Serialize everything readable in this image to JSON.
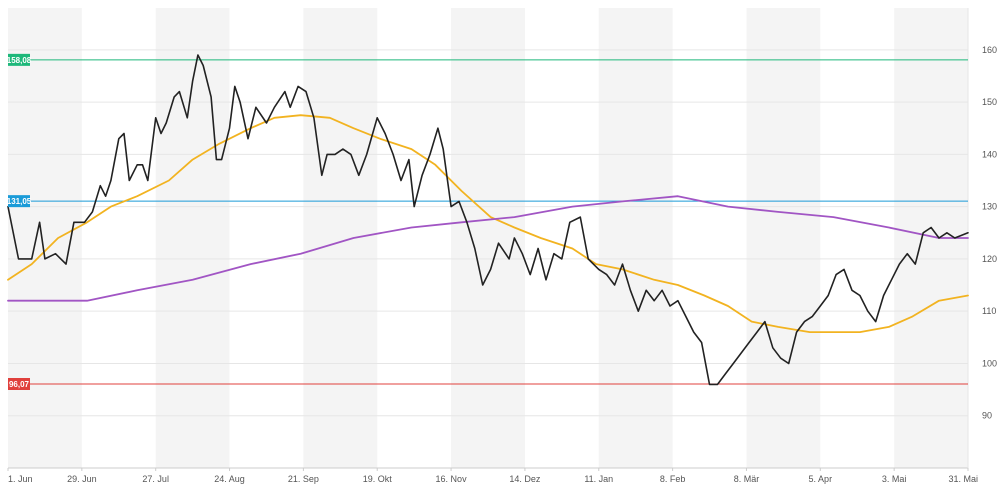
{
  "chart_data": {
    "type": "line",
    "title": "",
    "xlabel": "",
    "ylabel": "",
    "ylim": [
      80,
      168
    ],
    "x_range": [
      "2020-06-01",
      "2021-05-31"
    ],
    "grid": true,
    "x_ticks": [
      {
        "date": "2020-06-01",
        "label": "1. Jun"
      },
      {
        "date": "2020-06-29",
        "label": "29. Jun"
      },
      {
        "date": "2020-07-27",
        "label": "27. Jul"
      },
      {
        "date": "2020-08-24",
        "label": "24. Aug"
      },
      {
        "date": "2020-09-21",
        "label": "21. Sep"
      },
      {
        "date": "2020-10-19",
        "label": "19. Okt"
      },
      {
        "date": "2020-11-16",
        "label": "16. Nov"
      },
      {
        "date": "2020-12-14",
        "label": "14. Dez"
      },
      {
        "date": "2021-01-11",
        "label": "11. Jan"
      },
      {
        "date": "2021-02-08",
        "label": "8. Feb"
      },
      {
        "date": "2021-03-08",
        "label": "8. Mär"
      },
      {
        "date": "2021-04-05",
        "label": "5. Apr"
      },
      {
        "date": "2021-05-03",
        "label": "3. Mai"
      },
      {
        "date": "2021-05-31",
        "label": "31. Mai"
      }
    ],
    "y_ticks": [
      90,
      100,
      110,
      120,
      130,
      140,
      150,
      160
    ],
    "reference_lines": [
      {
        "value": 158.08,
        "label": "158,08",
        "color": "#1db87a"
      },
      {
        "value": 131.05,
        "label": "131,05",
        "color": "#1a9bd8"
      },
      {
        "value": 96.07,
        "label": "96,07",
        "color": "#e0403c"
      }
    ],
    "series": [
      {
        "name": "",
        "color": "#222222",
        "points": [
          [
            "2020-06-01",
            130
          ],
          [
            "2020-06-05",
            120
          ],
          [
            "2020-06-10",
            120
          ],
          [
            "2020-06-13",
            127
          ],
          [
            "2020-06-15",
            120
          ],
          [
            "2020-06-19",
            121
          ],
          [
            "2020-06-23",
            119
          ],
          [
            "2020-06-26",
            127
          ],
          [
            "2020-06-30",
            127
          ],
          [
            "2020-07-03",
            129
          ],
          [
            "2020-07-06",
            134
          ],
          [
            "2020-07-08",
            132
          ],
          [
            "2020-07-10",
            135
          ],
          [
            "2020-07-13",
            143
          ],
          [
            "2020-07-15",
            144
          ],
          [
            "2020-07-17",
            135
          ],
          [
            "2020-07-20",
            138
          ],
          [
            "2020-07-22",
            138
          ],
          [
            "2020-07-24",
            135
          ],
          [
            "2020-07-27",
            147
          ],
          [
            "2020-07-29",
            144
          ],
          [
            "2020-07-31",
            146
          ],
          [
            "2020-08-03",
            151
          ],
          [
            "2020-08-05",
            152
          ],
          [
            "2020-08-08",
            147
          ],
          [
            "2020-08-10",
            154
          ],
          [
            "2020-08-12",
            159
          ],
          [
            "2020-08-14",
            157
          ],
          [
            "2020-08-17",
            151
          ],
          [
            "2020-08-19",
            139
          ],
          [
            "2020-08-21",
            139
          ],
          [
            "2020-08-24",
            145
          ],
          [
            "2020-08-26",
            153
          ],
          [
            "2020-08-28",
            150
          ],
          [
            "2020-08-31",
            143
          ],
          [
            "2020-09-03",
            149
          ],
          [
            "2020-09-07",
            146
          ],
          [
            "2020-09-10",
            149
          ],
          [
            "2020-09-14",
            152
          ],
          [
            "2020-09-16",
            149
          ],
          [
            "2020-09-19",
            153
          ],
          [
            "2020-09-22",
            152
          ],
          [
            "2020-09-25",
            147
          ],
          [
            "2020-09-28",
            136
          ],
          [
            "2020-09-30",
            140
          ],
          [
            "2020-10-03",
            140
          ],
          [
            "2020-10-06",
            141
          ],
          [
            "2020-10-09",
            140
          ],
          [
            "2020-10-12",
            136
          ],
          [
            "2020-10-15",
            140
          ],
          [
            "2020-10-19",
            147
          ],
          [
            "2020-10-22",
            144
          ],
          [
            "2020-10-25",
            140
          ],
          [
            "2020-10-28",
            135
          ],
          [
            "2020-10-31",
            139
          ],
          [
            "2020-11-02",
            130
          ],
          [
            "2020-11-05",
            136
          ],
          [
            "2020-11-08",
            140
          ],
          [
            "2020-11-11",
            145
          ],
          [
            "2020-11-13",
            141
          ],
          [
            "2020-11-16",
            130
          ],
          [
            "2020-11-19",
            131
          ],
          [
            "2020-11-22",
            127
          ],
          [
            "2020-11-25",
            122
          ],
          [
            "2020-11-28",
            115
          ],
          [
            "2020-12-01",
            118
          ],
          [
            "2020-12-04",
            123
          ],
          [
            "2020-12-08",
            120
          ],
          [
            "2020-12-10",
            124
          ],
          [
            "2020-12-13",
            121
          ],
          [
            "2020-12-16",
            117
          ],
          [
            "2020-12-19",
            122
          ],
          [
            "2020-12-22",
            116
          ],
          [
            "2020-12-25",
            121
          ],
          [
            "2020-12-28",
            120
          ],
          [
            "2020-12-31",
            127
          ],
          [
            "2021-01-04",
            128
          ],
          [
            "2021-01-07",
            120
          ],
          [
            "2021-01-11",
            118
          ],
          [
            "2021-01-14",
            117
          ],
          [
            "2021-01-17",
            115
          ],
          [
            "2021-01-20",
            119
          ],
          [
            "2021-01-23",
            114
          ],
          [
            "2021-01-26",
            110
          ],
          [
            "2021-01-29",
            114
          ],
          [
            "2021-02-01",
            112
          ],
          [
            "2021-02-04",
            114
          ],
          [
            "2021-02-07",
            111
          ],
          [
            "2021-02-10",
            112
          ],
          [
            "2021-02-13",
            109
          ],
          [
            "2021-02-16",
            106
          ],
          [
            "2021-02-19",
            104
          ],
          [
            "2021-02-22",
            96
          ],
          [
            "2021-02-25",
            96
          ],
          [
            "2021-02-28",
            98
          ],
          [
            "2021-03-03",
            100
          ],
          [
            "2021-03-06",
            102
          ],
          [
            "2021-03-09",
            104
          ],
          [
            "2021-03-12",
            106
          ],
          [
            "2021-03-15",
            108
          ],
          [
            "2021-03-18",
            103
          ],
          [
            "2021-03-21",
            101
          ],
          [
            "2021-03-24",
            100
          ],
          [
            "2021-03-27",
            106
          ],
          [
            "2021-03-30",
            108
          ],
          [
            "2021-04-02",
            109
          ],
          [
            "2021-04-05",
            111
          ],
          [
            "2021-04-08",
            113
          ],
          [
            "2021-04-11",
            117
          ],
          [
            "2021-04-14",
            118
          ],
          [
            "2021-04-17",
            114
          ],
          [
            "2021-04-20",
            113
          ],
          [
            "2021-04-23",
            110
          ],
          [
            "2021-04-26",
            108
          ],
          [
            "2021-04-29",
            113
          ],
          [
            "2021-05-02",
            116
          ],
          [
            "2021-05-05",
            119
          ],
          [
            "2021-05-08",
            121
          ],
          [
            "2021-05-11",
            119
          ],
          [
            "2021-05-14",
            125
          ],
          [
            "2021-05-17",
            126
          ],
          [
            "2021-05-20",
            124
          ],
          [
            "2021-05-23",
            125
          ],
          [
            "2021-05-26",
            124
          ],
          [
            "2021-05-31",
            125
          ]
        ]
      },
      {
        "name": "",
        "color": "#f2b320",
        "points": [
          [
            "2020-06-01",
            116
          ],
          [
            "2020-06-10",
            119
          ],
          [
            "2020-06-20",
            124
          ],
          [
            "2020-07-01",
            127
          ],
          [
            "2020-07-10",
            130
          ],
          [
            "2020-07-20",
            132
          ],
          [
            "2020-08-01",
            135
          ],
          [
            "2020-08-10",
            139
          ],
          [
            "2020-08-20",
            142
          ],
          [
            "2020-09-01",
            145
          ],
          [
            "2020-09-10",
            147
          ],
          [
            "2020-09-20",
            147.5
          ],
          [
            "2020-10-01",
            147
          ],
          [
            "2020-10-10",
            145
          ],
          [
            "2020-10-20",
            143
          ],
          [
            "2020-11-01",
            141
          ],
          [
            "2020-11-10",
            138
          ],
          [
            "2020-11-20",
            133
          ],
          [
            "2020-12-01",
            128
          ],
          [
            "2020-12-10",
            126
          ],
          [
            "2020-12-20",
            124
          ],
          [
            "2021-01-01",
            122
          ],
          [
            "2021-01-10",
            119
          ],
          [
            "2021-01-20",
            118
          ],
          [
            "2021-02-01",
            116
          ],
          [
            "2021-02-10",
            115
          ],
          [
            "2021-02-20",
            113
          ],
          [
            "2021-03-01",
            111
          ],
          [
            "2021-03-10",
            108
          ],
          [
            "2021-03-20",
            107
          ],
          [
            "2021-04-01",
            106
          ],
          [
            "2021-04-10",
            106
          ],
          [
            "2021-04-20",
            106
          ],
          [
            "2021-05-01",
            107
          ],
          [
            "2021-05-10",
            109
          ],
          [
            "2021-05-20",
            112
          ],
          [
            "2021-05-31",
            113
          ]
        ]
      },
      {
        "name": "",
        "color": "#a155c4",
        "points": [
          [
            "2020-06-01",
            112
          ],
          [
            "2020-06-20",
            112
          ],
          [
            "2020-07-01",
            112
          ],
          [
            "2020-07-20",
            114
          ],
          [
            "2020-08-10",
            116
          ],
          [
            "2020-09-01",
            119
          ],
          [
            "2020-09-20",
            121
          ],
          [
            "2020-10-10",
            124
          ],
          [
            "2020-11-01",
            126
          ],
          [
            "2020-11-20",
            127
          ],
          [
            "2020-12-10",
            128
          ],
          [
            "2021-01-01",
            130
          ],
          [
            "2021-01-20",
            131
          ],
          [
            "2021-02-10",
            132
          ],
          [
            "2021-03-01",
            130
          ],
          [
            "2021-03-20",
            129
          ],
          [
            "2021-04-10",
            128
          ],
          [
            "2021-05-01",
            126
          ],
          [
            "2021-05-20",
            124
          ],
          [
            "2021-05-31",
            124
          ]
        ]
      }
    ]
  }
}
